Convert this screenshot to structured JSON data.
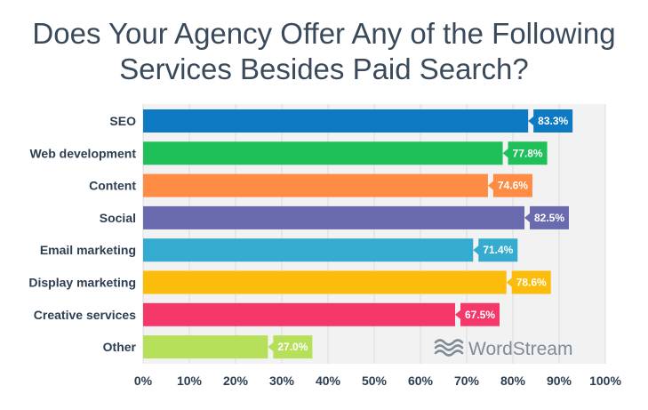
{
  "chart_data": {
    "type": "bar",
    "orientation": "horizontal",
    "title_lines": [
      "Does Your Agency Offer Any of the Following",
      "Services Besides Paid Search?"
    ],
    "categories": [
      "SEO",
      "Web development",
      "Content",
      "Social",
      "Email marketing",
      "Display marketing",
      "Creative services",
      "Other"
    ],
    "values": [
      83.3,
      77.8,
      74.6,
      82.5,
      71.4,
      78.6,
      67.5,
      27.0
    ],
    "data_labels": [
      "83.3%",
      "77.8%",
      "74.6%",
      "82.5%",
      "71.4%",
      "78.6%",
      "67.5%",
      "27.0%"
    ],
    "colors": [
      "#0e7ac4",
      "#1fbf5a",
      "#ff8c45",
      "#6a6aaf",
      "#36abd0",
      "#fcbc0b",
      "#f5386a",
      "#b6e05a"
    ],
    "xlim": [
      0,
      100
    ],
    "x_ticks": [
      0,
      10,
      20,
      30,
      40,
      50,
      60,
      70,
      80,
      90,
      100
    ],
    "x_tick_labels": [
      "0%",
      "10%",
      "20%",
      "30%",
      "40%",
      "50%",
      "60%",
      "70%",
      "80%",
      "90%",
      "100%"
    ],
    "grid": true
  },
  "branding": {
    "logo_text": "WordStream",
    "logo_color": "#7f8c97"
  }
}
